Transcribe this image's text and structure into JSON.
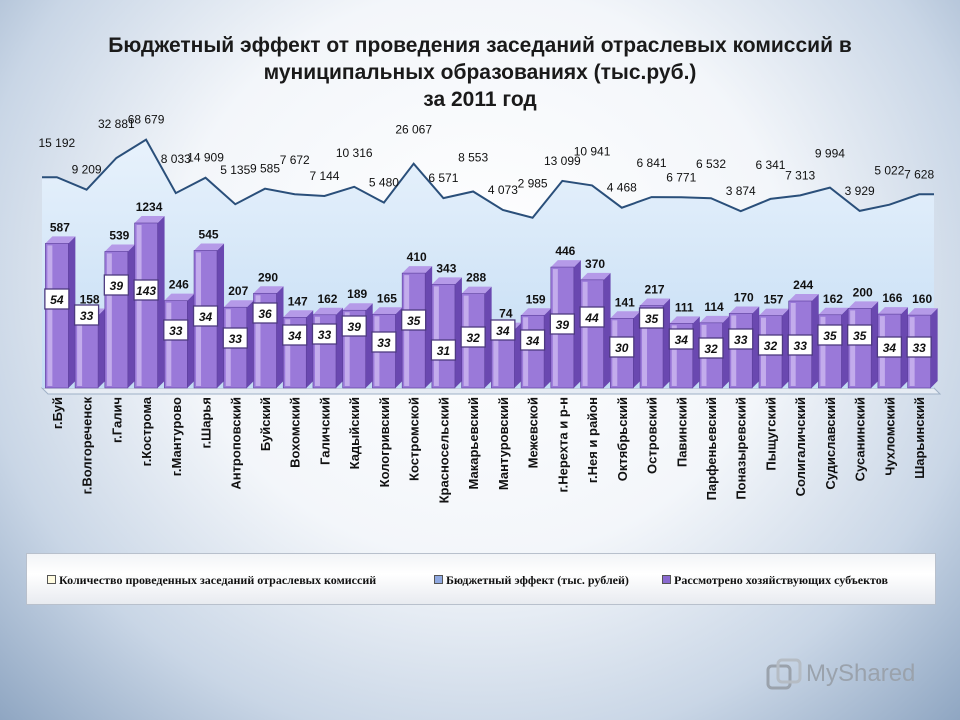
{
  "title": {
    "line1": "Бюджетный эффект от проведения заседаний отраслевых комиссий в",
    "line2": "муниципальных образованиях (тыс.руб.)",
    "line3": "за 2011 год"
  },
  "chart_data": {
    "type": "bar",
    "title": "Бюджетный эффект от проведения заседаний отраслевых комиссий в муниципальных образованиях (тыс.руб.) за 2011 год",
    "categories": [
      "г.Буй",
      "г.Волгореченск",
      "г.Галич",
      "г.Кострома",
      "г.Мантурово",
      "г.Шарья",
      "Антроповский",
      "Буйский",
      "Вохомский",
      "Галичский",
      "Кадыйский",
      "Кологривский",
      "Костромской",
      "Красносельский",
      "Макарьевский",
      "Мантуровский",
      "Межевской",
      "г.Нерехта и р-н",
      "г.Нея и район",
      "Октябрьский",
      "Островский",
      "Павинский",
      "Парфеньевский",
      "Поназыревский",
      "Пыщугский",
      "Солигаличский",
      "Судиславский",
      "Сусанинский",
      "Чухломский",
      "Шарьинский"
    ],
    "series": [
      {
        "name": "Бюджетный эффект (тыс. рублей)",
        "kind": "area",
        "labels": [
          "15 192",
          "9 209",
          "32 881",
          "68 679",
          "8 033",
          "14 909",
          "5 135",
          "9 585",
          "7 672",
          "7 144",
          "10 316",
          "5 480",
          "26 067",
          "6 571",
          "8 553",
          "4 073",
          "2 985",
          "13 099",
          "10 941",
          "4 468",
          "6 841",
          "6 771",
          "6 532",
          "3 874",
          "6 341",
          "7 313",
          "9 994",
          "3 929",
          "5 022",
          "7 628"
        ],
        "values": [
          15192,
          9209,
          32881,
          68679,
          8033,
          14909,
          5135,
          9585,
          7672,
          7144,
          10316,
          5480,
          26067,
          6571,
          8553,
          4073,
          2985,
          13099,
          10941,
          4468,
          6841,
          6771,
          6532,
          3874,
          6341,
          7313,
          9994,
          3929,
          5022,
          7628
        ]
      },
      {
        "name": "Рассмотрено хозяйствующих субъектов",
        "kind": "bar",
        "values": [
          587,
          158,
          539,
          1234,
          246,
          545,
          207,
          290,
          147,
          162,
          189,
          165,
          410,
          343,
          288,
          74,
          159,
          446,
          370,
          141,
          217,
          111,
          114,
          170,
          157,
          244,
          162,
          200,
          166,
          160
        ]
      },
      {
        "name": "Количество проведенных заседаний отраслевых комиссий",
        "kind": "label",
        "values": [
          54,
          33,
          39,
          143,
          33,
          34,
          33,
          36,
          34,
          33,
          39,
          33,
          35,
          31,
          32,
          34,
          34,
          39,
          44,
          30,
          35,
          34,
          32,
          33,
          32,
          33,
          35,
          35,
          34,
          33
        ]
      }
    ],
    "legend": [
      "Количество проведенных заседаний отраслевых комиссий",
      "Бюджетный эффект (тыс. рублей)",
      "Рассмотрено хозяйствующих субъектов"
    ],
    "legend_position": "bottom",
    "colors": {
      "area_fill": "#c3dcf4",
      "area_line": "#2a4f7a",
      "bar_front": "#9a79d9",
      "bar_dark": "#6a48b0",
      "bar_light": "#d4c2f4",
      "bar_top": "#b59ae8",
      "box_fill": "#ffffff",
      "box_border": "#4d3a80"
    }
  },
  "watermark": "MyShared"
}
